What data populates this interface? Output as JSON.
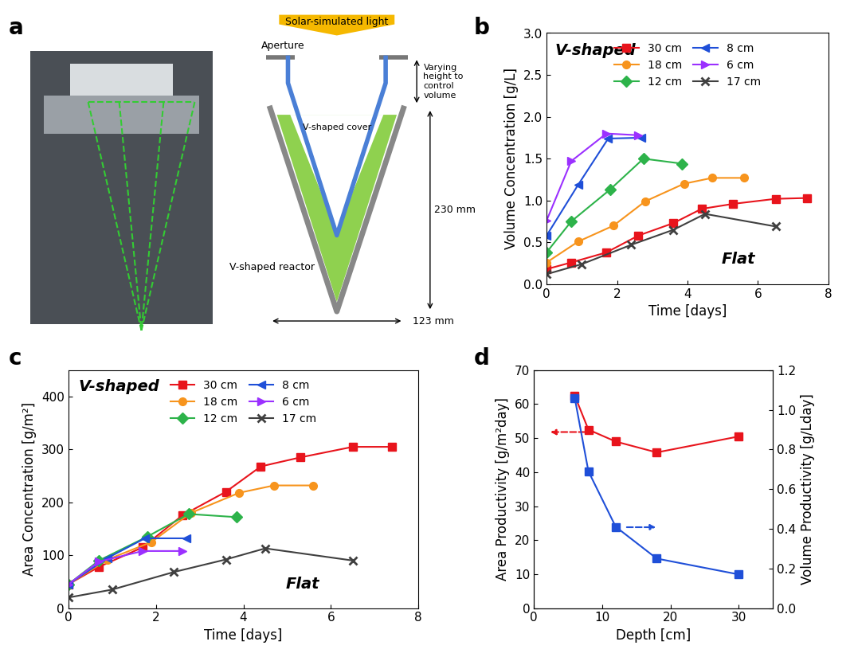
{
  "diagram": {
    "label": "a",
    "texts": {
      "light": "Solar-simulated light",
      "aperture": "Aperture",
      "varying": "Varying height to control volume",
      "cover": "V-shaped cover",
      "height": "230 mm",
      "reactor": "V-shaped reactor",
      "width": "123 mm"
    }
  },
  "chart_data": [
    {
      "label": "b",
      "type": "line",
      "x_label": "Time [days]",
      "y_label": "Volume Concentration [g/L]",
      "xlim": [
        0,
        8
      ],
      "xticks": [
        0,
        2,
        4,
        6,
        8
      ],
      "ylim": [
        0,
        3
      ],
      "yticks": [
        {
          "value": 0,
          "label": "0.0"
        },
        0.5,
        {
          "value": 1,
          "label": "1.0"
        },
        1.5,
        {
          "value": 2,
          "label": "2.0"
        },
        2.5,
        {
          "value": 3,
          "label": "3.0"
        }
      ],
      "legend": "upper center",
      "annotations": [
        "V-shaped",
        "Flat"
      ],
      "series": [
        {
          "name": "30 cm",
          "color": "#e8141c",
          "marker": "square",
          "x": [
            0,
            0.7,
            1.7,
            2.6,
            3.6,
            4.4,
            5.3,
            6.5,
            7.4
          ],
          "values": [
            0.18,
            0.26,
            0.38,
            0.58,
            0.73,
            0.9,
            0.96,
            1.02,
            1.03
          ]
        },
        {
          "name": "18 cm",
          "color": "#f7941d",
          "marker": "circle",
          "x": [
            0,
            0.9,
            1.9,
            2.8,
            3.9,
            4.7,
            5.6
          ],
          "values": [
            0.26,
            0.51,
            0.7,
            0.99,
            1.2,
            1.27,
            1.27
          ]
        },
        {
          "name": "12 cm",
          "color": "#2db34a",
          "marker": "diamond",
          "x": [
            0,
            0.7,
            1.8,
            2.75,
            3.85
          ],
          "values": [
            0.38,
            0.75,
            1.13,
            1.5,
            1.44
          ]
        },
        {
          "name": "8 cm",
          "color": "#1f4fd8",
          "marker": "triangle_left",
          "x": [
            0,
            0.9,
            1.75,
            2.7
          ],
          "values": [
            0.58,
            1.19,
            1.74,
            1.75
          ]
        },
        {
          "name": "6 cm",
          "color": "#9b30ff",
          "marker": "triangle_right",
          "x": [
            0,
            0.7,
            1.7,
            2.6
          ],
          "values": [
            0.76,
            1.47,
            1.8,
            1.78
          ]
        },
        {
          "name": "17 cm",
          "color": "#404040",
          "marker": "x",
          "x": [
            0,
            1.0,
            2.4,
            3.6,
            4.5,
            6.5
          ],
          "values": [
            0.12,
            0.24,
            0.47,
            0.65,
            0.84,
            0.69
          ]
        }
      ]
    },
    {
      "label": "c",
      "type": "line",
      "x_label": "Time [days]",
      "y_label": "Area Concentration [g/m²]",
      "xlim": [
        0,
        8
      ],
      "xticks": [
        0,
        2,
        4,
        6,
        8
      ],
      "ylim": [
        0,
        450
      ],
      "yticks": [
        0,
        100,
        200,
        300,
        400
      ],
      "legend": "upper center",
      "annotations": [
        "V-shaped",
        "Flat"
      ],
      "series": [
        {
          "name": "30 cm",
          "color": "#e8141c",
          "marker": "square",
          "x": [
            0,
            0.7,
            1.7,
            2.6,
            3.6,
            4.4,
            5.3,
            6.5,
            7.4
          ],
          "values": [
            45,
            78,
            115,
            175,
            220,
            268,
            285,
            305,
            305
          ]
        },
        {
          "name": "18 cm",
          "color": "#f7941d",
          "marker": "circle",
          "x": [
            0,
            0.9,
            1.9,
            2.8,
            3.9,
            4.7,
            5.6
          ],
          "values": [
            45,
            92,
            125,
            180,
            218,
            232,
            232
          ]
        },
        {
          "name": "12 cm",
          "color": "#2db34a",
          "marker": "diamond",
          "x": [
            0,
            0.7,
            1.8,
            2.75,
            3.85
          ],
          "values": [
            45,
            90,
            135,
            178,
            172
          ]
        },
        {
          "name": "8 cm",
          "color": "#1f4fd8",
          "marker": "triangle_left",
          "x": [
            0,
            0.9,
            1.75,
            2.7
          ],
          "values": [
            45,
            95,
            132,
            132
          ]
        },
        {
          "name": "6 cm",
          "color": "#9b30ff",
          "marker": "triangle_right",
          "x": [
            0,
            0.7,
            1.7,
            2.6
          ],
          "values": [
            45,
            88,
            108,
            108
          ]
        },
        {
          "name": "17 cm",
          "color": "#404040",
          "marker": "x",
          "x": [
            0,
            1.0,
            2.4,
            3.6,
            4.5,
            6.5
          ],
          "values": [
            20,
            35,
            68,
            92,
            113,
            90
          ]
        }
      ]
    },
    {
      "label": "d",
      "type": "line",
      "x_label": "Depth [cm]",
      "y_label": "Area Productivity [g/m²day]",
      "y2_label": "Volume Productivity [g/Lday]",
      "xlim": [
        0,
        35
      ],
      "xticks": [
        0,
        10,
        20,
        30
      ],
      "ylim": [
        0,
        70
      ],
      "yticks": [
        0,
        10,
        20,
        30,
        40,
        50,
        60,
        70
      ],
      "y2lim": [
        0,
        1.2
      ],
      "y2ticks": [
        {
          "value": 0,
          "label": "0.0"
        },
        0.2,
        0.4,
        0.6,
        0.8,
        {
          "value": 1,
          "label": "1.0"
        },
        1.2
      ],
      "series": [
        {
          "color": "#e8141c",
          "marker": "square",
          "x": [
            6,
            8,
            12,
            18,
            30
          ],
          "values": [
            62.5,
            52.5,
            49,
            45.8,
            50.5
          ]
        },
        {
          "color": "#1f4fd8",
          "marker": "square",
          "axis": "y2",
          "x": [
            6,
            8,
            12,
            18,
            30
          ],
          "values": [
            1.06,
            0.69,
            0.41,
            0.25,
            0.17
          ]
        }
      ]
    }
  ]
}
